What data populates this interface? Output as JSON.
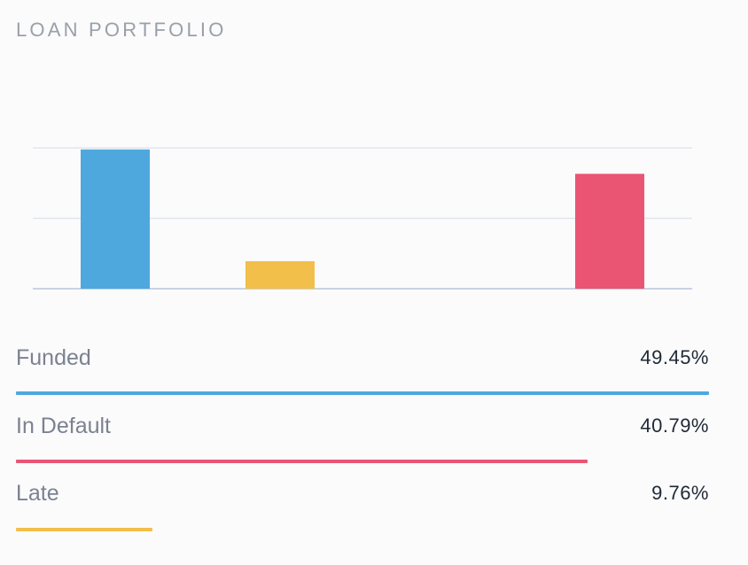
{
  "header": {
    "title": "LOAN PORTFOLIO"
  },
  "chart_data": {
    "type": "bar",
    "categories": [
      "Funded",
      "Late",
      "",
      "In Default"
    ],
    "values": [
      49.45,
      9.76,
      0,
      40.79
    ],
    "colors": [
      "#4ea8de",
      "#f2bf4b",
      "#4ea8de",
      "#ea5573"
    ],
    "ylim": [
      0,
      50
    ],
    "gridlines": [
      0,
      25,
      50
    ],
    "grid": true,
    "legend_position": "bottom"
  },
  "legend": [
    {
      "label": "Funded",
      "value": "49.45%",
      "fraction": 0.4945,
      "color": "#4ea8de"
    },
    {
      "label": "In Default",
      "value": "40.79%",
      "fraction": 0.4079,
      "color": "#ea5573"
    },
    {
      "label": "Late",
      "value": "9.76%",
      "fraction": 0.0976,
      "color": "#f2bf4b"
    }
  ]
}
